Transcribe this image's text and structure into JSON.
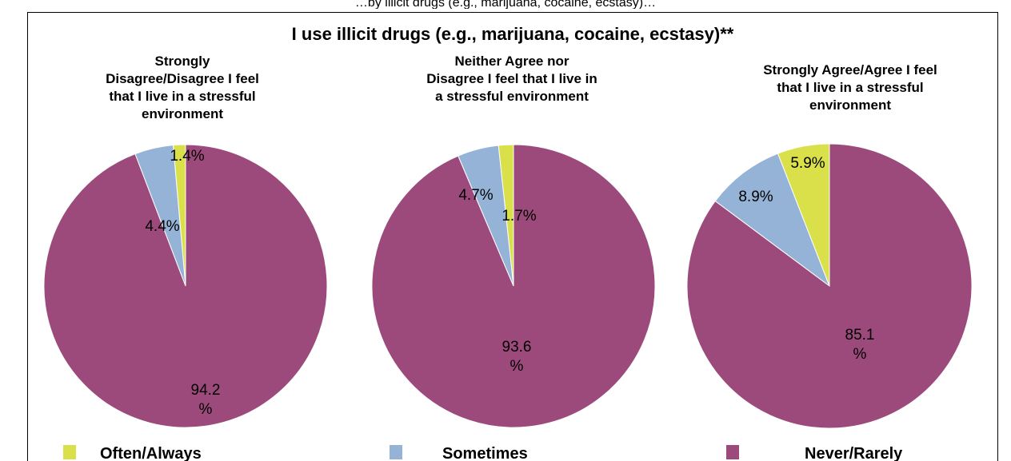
{
  "header_fragment": "…by illicit drugs (e.g., marijuana, cocaine, ecstasy)…",
  "colors": {
    "often": "#d9e04a",
    "sometimes": "#95b3d7",
    "never": "#9c4a7b"
  },
  "chart_data": {
    "type": "pie",
    "title": "I use illicit drugs (e.g., marijuana, cocaine, ecstasy)**",
    "legend": [
      {
        "name": "Often/Always",
        "color": "#d9e04a"
      },
      {
        "name": "Sometimes",
        "color": "#95b3d7"
      },
      {
        "name": "Never/Rarely",
        "color": "#9c4a7b"
      }
    ],
    "legend_position": "bottom",
    "pies": [
      {
        "title_lines": [
          "Strongly",
          "Disagree/Disagree I feel",
          "that I live in a stressful",
          "environment"
        ],
        "slices": [
          {
            "name": "Often/Always",
            "value": 1.4,
            "label": "1.4%"
          },
          {
            "name": "Sometimes",
            "value": 4.4,
            "label": "4.4%"
          },
          {
            "name": "Never/Rarely",
            "value": 94.2,
            "label_lines": [
              "94.2",
              "%"
            ]
          }
        ]
      },
      {
        "title_lines": [
          "Neither Agree nor",
          "Disagree I feel that I live in",
          "a stressful environment"
        ],
        "slices": [
          {
            "name": "Often/Always",
            "value": 1.7,
            "label": "1.7%"
          },
          {
            "name": "Sometimes",
            "value": 4.7,
            "label": "4.7%"
          },
          {
            "name": "Never/Rarely",
            "value": 93.6,
            "label_lines": [
              "93.6",
              "%"
            ]
          }
        ]
      },
      {
        "title_lines": [
          "Strongly Agree/Agree I feel",
          "that I live in a stressful",
          "environment"
        ],
        "slices": [
          {
            "name": "Often/Always",
            "value": 5.9,
            "label": "5.9%"
          },
          {
            "name": "Sometimes",
            "value": 8.9,
            "label": "8.9%"
          },
          {
            "name": "Never/Rarely",
            "value": 85.1,
            "label_lines": [
              "85.1",
              "%"
            ]
          }
        ]
      }
    ]
  }
}
